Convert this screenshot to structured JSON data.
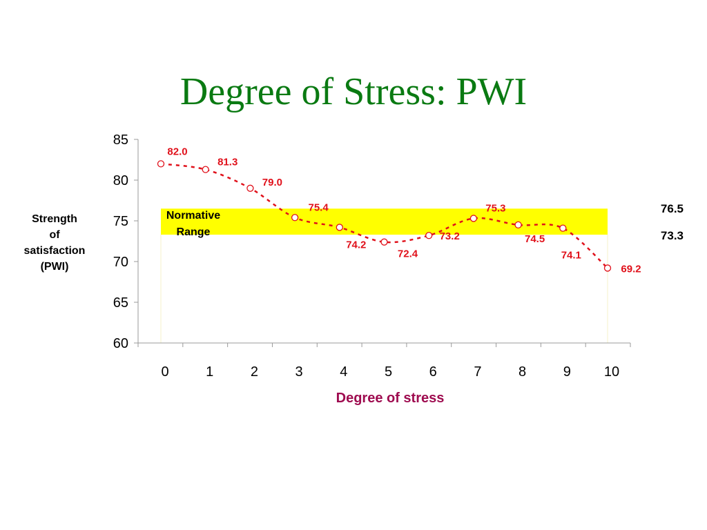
{
  "title": "Degree of Stress: PWI",
  "ylabel_lines": [
    "Strength",
    "of",
    "satisfaction",
    "(PWI)"
  ],
  "colors": {
    "title": "#0a7a12",
    "series": "#e0101a",
    "band": "#ffff00",
    "xlabel": "#9e0b4f"
  },
  "band": {
    "label_lines": [
      "Normative",
      "Range"
    ],
    "upper": 76.5,
    "lower": 73.3,
    "upper_label": "76.5",
    "lower_label": "73.3"
  },
  "chart_data": {
    "type": "line",
    "title": "Degree of Stress: PWI",
    "xlabel": "Degree of stress",
    "ylabel": "Strength of satisfaction (PWI)",
    "x": [
      0,
      1,
      2,
      3,
      4,
      5,
      6,
      7,
      8,
      9,
      10
    ],
    "x_tick_labels": [
      "0",
      "1",
      "2",
      "3",
      "4",
      "5",
      "6",
      "7",
      "8",
      "9",
      "10"
    ],
    "y": [
      82.0,
      81.3,
      79.0,
      75.4,
      74.2,
      72.4,
      73.2,
      75.3,
      74.5,
      74.1,
      69.2
    ],
    "data_labels": [
      "82.0",
      "81.3",
      "79.0",
      "75.4",
      "74.2",
      "72.4",
      "73.2",
      "75.3",
      "74.5",
      "74.1",
      "69.2"
    ],
    "y_tick_labels": [
      "60",
      "65",
      "70",
      "75",
      "80",
      "85"
    ],
    "ylim": [
      60,
      85
    ],
    "y_ticks": [
      60,
      65,
      70,
      75,
      80,
      85
    ],
    "grid": false,
    "legend": "none",
    "normative_range": [
      73.3,
      76.5
    ],
    "line_style": "dashed",
    "marker": "open-circle"
  }
}
